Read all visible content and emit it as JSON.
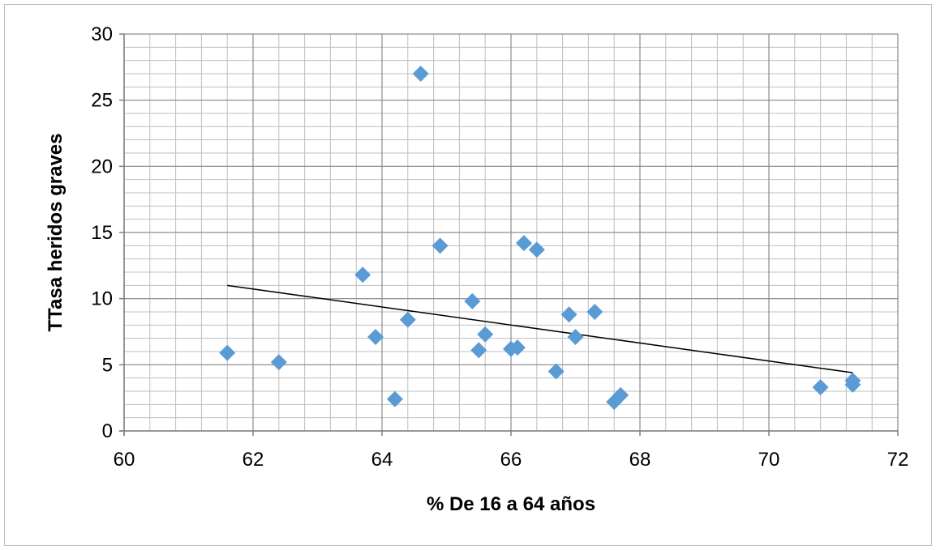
{
  "chart_data": {
    "type": "scatter",
    "xlabel": "% De 16 a 64 años",
    "ylabel": "TTasa heridos graves",
    "xlim": [
      60,
      72
    ],
    "ylim": [
      0,
      30
    ],
    "x_ticks": [
      "60",
      "62",
      "64",
      "66",
      "68",
      "70",
      "72"
    ],
    "y_ticks": [
      "0",
      "5",
      "10",
      "15",
      "20",
      "25",
      "30"
    ],
    "grid": "major and minor",
    "legend": "none",
    "marker": "diamond",
    "marker_color": "#5b9bd5",
    "trendline": {
      "type": "linear",
      "x": [
        61.6,
        71.3
      ],
      "y": [
        11.0,
        4.4
      ],
      "color": "#000000"
    },
    "points": [
      {
        "x": 61.6,
        "y": 5.9
      },
      {
        "x": 62.4,
        "y": 5.2
      },
      {
        "x": 63.7,
        "y": 11.8
      },
      {
        "x": 63.9,
        "y": 7.1
      },
      {
        "x": 64.2,
        "y": 2.4
      },
      {
        "x": 64.4,
        "y": 8.4
      },
      {
        "x": 64.6,
        "y": 27.0
      },
      {
        "x": 64.9,
        "y": 14.0
      },
      {
        "x": 65.4,
        "y": 9.8
      },
      {
        "x": 65.5,
        "y": 6.1
      },
      {
        "x": 65.6,
        "y": 7.3
      },
      {
        "x": 66.0,
        "y": 6.2
      },
      {
        "x": 66.1,
        "y": 6.3
      },
      {
        "x": 66.2,
        "y": 14.2
      },
      {
        "x": 66.4,
        "y": 13.7
      },
      {
        "x": 66.7,
        "y": 4.5
      },
      {
        "x": 66.9,
        "y": 8.8
      },
      {
        "x": 67.0,
        "y": 7.1
      },
      {
        "x": 67.3,
        "y": 9.0
      },
      {
        "x": 67.6,
        "y": 2.2
      },
      {
        "x": 67.7,
        "y": 2.7
      },
      {
        "x": 70.8,
        "y": 3.3
      },
      {
        "x": 71.3,
        "y": 3.8
      },
      {
        "x": 71.3,
        "y": 3.5
      }
    ]
  }
}
